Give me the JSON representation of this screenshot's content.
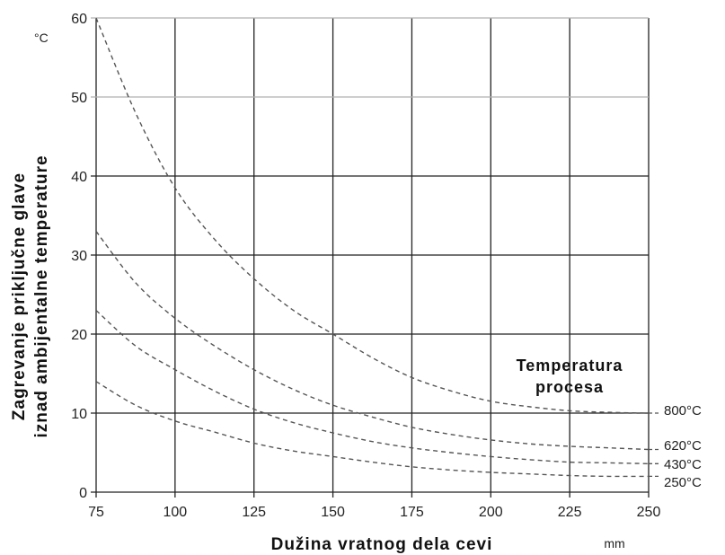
{
  "chart_data": {
    "type": "line",
    "xlabel": "Dužina vratnog dela cevi",
    "x_unit": "mm",
    "ylabel_line1": "Zagrevanje priključne glave",
    "ylabel_line2": "iznad ambijentalne temperature",
    "y_unit": "°C",
    "legend_title_line1": "Temperatura",
    "legend_title_line2": "procesa",
    "xlim": [
      75,
      250
    ],
    "ylim": [
      0,
      60
    ],
    "x_ticks": [
      75,
      100,
      125,
      150,
      175,
      200,
      225,
      250
    ],
    "y_ticks": [
      0,
      10,
      20,
      30,
      40,
      50,
      60
    ],
    "grid": true,
    "line_style": "dashed",
    "series": [
      {
        "name": "800°C",
        "x": [
          75,
          87.5,
          100,
          112.5,
          125,
          137.5,
          150,
          162.5,
          175,
          187.5,
          200,
          212.5,
          225,
          237.5,
          250
        ],
        "values": [
          60,
          48,
          38.5,
          32,
          27,
          23,
          20,
          17,
          14.5,
          12.8,
          11.5,
          10.8,
          10.3,
          10.1,
          10
        ]
      },
      {
        "name": "620°C",
        "x": [
          75,
          87.5,
          100,
          112.5,
          125,
          137.5,
          150,
          162.5,
          175,
          187.5,
          200,
          212.5,
          225,
          237.5,
          250
        ],
        "values": [
          33,
          26.5,
          22,
          18.5,
          15.5,
          13,
          11,
          9.5,
          8.2,
          7.3,
          6.6,
          6.1,
          5.8,
          5.6,
          5.4
        ]
      },
      {
        "name": "430°C",
        "x": [
          75,
          87.5,
          100,
          112.5,
          125,
          137.5,
          150,
          162.5,
          175,
          187.5,
          200,
          212.5,
          225,
          237.5,
          250
        ],
        "values": [
          23,
          18.5,
          15.5,
          12.8,
          10.5,
          8.8,
          7.5,
          6.4,
          5.6,
          5,
          4.5,
          4.1,
          3.8,
          3.7,
          3.6
        ]
      },
      {
        "name": "250°C",
        "x": [
          75,
          87.5,
          100,
          112.5,
          125,
          137.5,
          150,
          162.5,
          175,
          187.5,
          200,
          212.5,
          225,
          237.5,
          250
        ],
        "values": [
          14,
          11,
          9,
          7.6,
          6.2,
          5.2,
          4.5,
          3.8,
          3.2,
          2.8,
          2.5,
          2.3,
          2.1,
          2,
          2
        ]
      }
    ],
    "colors": {
      "grid": "#222222",
      "grid_light": "#b0b0b0",
      "line": "#555555"
    }
  }
}
